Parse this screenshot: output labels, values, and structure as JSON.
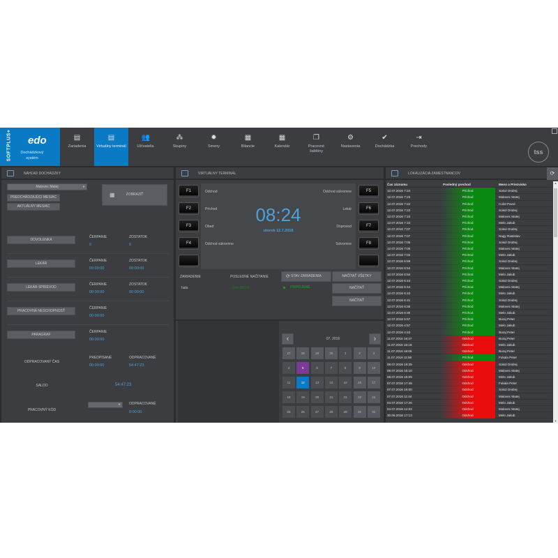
{
  "app": {
    "brand": "SOFTPLUS+",
    "logo": "edo",
    "title": "Dochádzkový systém"
  },
  "nav": [
    {
      "label": "Zariadenia",
      "icon": "device-icon"
    },
    {
      "label": "Virtuálny terminál",
      "icon": "terminal-icon",
      "active": true
    },
    {
      "label": "Užívatelia",
      "icon": "users-icon"
    },
    {
      "label": "Skupiny",
      "icon": "groups-icon"
    },
    {
      "label": "Smeny",
      "icon": "shifts-icon"
    },
    {
      "label": "Bilancie",
      "icon": "calculator-icon"
    },
    {
      "label": "Kalendár",
      "icon": "calendar-icon"
    },
    {
      "label": "Pracovné šablóny",
      "icon": "templates-icon"
    },
    {
      "label": "Nastavenia",
      "icon": "settings-icon"
    },
    {
      "label": "Dochádzka",
      "icon": "attendance-icon"
    },
    {
      "label": "Prechody",
      "icon": "door-icon"
    }
  ],
  "company_logo": "tss",
  "left": {
    "title": "NÁHĽAD DOCHÁDZKY",
    "employee": "Malovec Matej",
    "prev_month": "PREDCHÁDZAJÚCI MESIAC",
    "cur_month": "AKTUÁLNY MESIAC",
    "show": "ZOBRAZIŤ",
    "rows": [
      {
        "button": "DOVOLENKA",
        "l1": "ČERPANIE",
        "v1": "0",
        "l2": "ZOSTATOK",
        "v2": "0"
      },
      {
        "button": "LEKÁR",
        "l1": "ČERPANIE",
        "v1": "00:00:00",
        "l2": "ZOSTATOK",
        "v2": "00:00:00"
      },
      {
        "button": "LEKÁR SPRIEVOD",
        "l1": "ČERPANIE",
        "v1": "00:00:00",
        "l2": "ZOSTATOK",
        "v2": "00:00:00"
      },
      {
        "button": "PRACOVNÁ NESCHOPNOSŤ",
        "l1": "ČERPANIE",
        "v1": "00:00:00"
      },
      {
        "button": "PARAGRAF",
        "l1": "ČERPANIE",
        "v1": "00:00:00"
      }
    ],
    "worked": {
      "label": "ODPRACOVANÝ ČAS",
      "l1": "PREDPÍSANÉ",
      "v1": "00:00:00",
      "l2": "ODPRACOVANÉ",
      "v2": "54:47:23"
    },
    "saldo": {
      "label": "SALDO",
      "value": "54:47:23"
    },
    "code": {
      "label": "PRACOVNÝ KÓD",
      "l2": "ODPRACOVANÉ",
      "v2": "0:00:00"
    }
  },
  "center": {
    "title": "VIRTUÁLNY TERMINÁL",
    "time": "08:24",
    "date": "utorok 12.7.2016",
    "fkeys_left": [
      "F1",
      "F2",
      "F3",
      "F4",
      ""
    ],
    "fkeys_right": [
      "F5",
      "F6",
      "F7",
      "F8",
      ""
    ],
    "labels_left": [
      "Odchod",
      "Príchod",
      "Obed",
      "Odchod súkromne"
    ],
    "labels_right": [
      "Odchod súkromne",
      "Lekár",
      "Doprovod",
      "Súkromne"
    ],
    "col_device": "ZARIADENIE",
    "col_last": "POSLEDNÉ NAČÍTANIE",
    "status_btn": "STAV ZARIADENIA",
    "load_all": "NAČÍTAŤ VŠETKY",
    "load": "NAČÍTAŤ",
    "device": {
      "name": "hala",
      "last": "dnes 08:24",
      "status": "PRIPOJENÉ"
    },
    "calendar": {
      "month": "07. 2016",
      "selected": 12,
      "marked": 5,
      "days": [
        27,
        28,
        29,
        30,
        1,
        2,
        3,
        4,
        5,
        6,
        7,
        8,
        9,
        10,
        11,
        12,
        13,
        14,
        15,
        16,
        17,
        18,
        19,
        20,
        21,
        22,
        23,
        24,
        25,
        26,
        27,
        28,
        29,
        30,
        31
      ]
    }
  },
  "right": {
    "title": "LOKALIZÁCIA ZAMESTNANCOV",
    "cols": [
      "Čas záznamu",
      "Posledný prechod",
      "Meno a Priezvisko"
    ],
    "colors": {
      "in": "#0b8a12",
      "out": "#e80c0c"
    },
    "rows": [
      [
        "12.07.2016 7:24",
        "Príchod",
        "Sokol Ondrej"
      ],
      [
        "12.07.2016 7:23",
        "Príchod",
        "Malovec Matej"
      ],
      [
        "12.07.2016 7:22",
        "Príchod",
        "Colot Pavol"
      ],
      [
        "12.07.2016 7:22",
        "Príchod",
        "Sokol Ondrej"
      ],
      [
        "12.07.2016 7:10",
        "Príchod",
        "Malovec Matej"
      ],
      [
        "12.07.2016 7:10",
        "Príchod",
        "Melo Jakub"
      ],
      [
        "12.07.2016 7:07",
        "Príchod",
        "Sokol Ondrej"
      ],
      [
        "12.07.2016 7:07",
        "Príchod",
        "Nagy Rastislav"
      ],
      [
        "12.07.2016 7:05",
        "Príchod",
        "Sokol Ondrej"
      ],
      [
        "12.07.2016 7:05",
        "Príchod",
        "Malovec Matej"
      ],
      [
        "12.07.2016 7:02",
        "Príchod",
        "Melo Jakub"
      ],
      [
        "12.07.2016 6:58",
        "Príchod",
        "Sokol Ondrej"
      ],
      [
        "12.07.2016 6:54",
        "Príchod",
        "Malovec Matej"
      ],
      [
        "12.07.2016 6:54",
        "Príchod",
        "Melo Jakub"
      ],
      [
        "12.07.2016 6:44",
        "Príchod",
        "Sokol Ondrej"
      ],
      [
        "12.07.2016 6:44",
        "Príchod",
        "Malovec Matej"
      ],
      [
        "12.07.2016 6:43",
        "Príchod",
        "Melo Jakub"
      ],
      [
        "12.07.2016 6:41",
        "Príchod",
        "Sokol Ondrej"
      ],
      [
        "12.07.2016 6:35",
        "Príchod",
        "Malovec Matej"
      ],
      [
        "12.07.2016 6:30",
        "Príchod",
        "Melo Jakub"
      ],
      [
        "12.07.2016 5:57",
        "Príchod",
        "Buraj Peter"
      ],
      [
        "12.07.2016 4:57",
        "Príchod",
        "Melo Jakub"
      ],
      [
        "12.07.2016 4:43",
        "Príchod",
        "Buraj Peter"
      ],
      [
        "11.07.2016 16:47",
        "Odchod",
        "Buraj Peter"
      ],
      [
        "11.07.2016 16:18",
        "Odchod",
        "Melo Jakub"
      ],
      [
        "11.07.2016 16:06",
        "Odchod",
        "Buraj Peter"
      ],
      [
        "11.07.2016 11:58",
        "Príchod",
        "Fukala Peter"
      ],
      [
        "08.07.2016 16:35",
        "Odchod",
        "Sokol Ondrej"
      ],
      [
        "08.07.2016 15:10",
        "Odchod",
        "Malovec Matej"
      ],
      [
        "08.07.2016 15:09",
        "Odchod",
        "Melo Jakub"
      ],
      [
        "07.07.2016 17:45",
        "Odchod",
        "Fukala Peter"
      ],
      [
        "07.07.2016 16:00",
        "Odchod",
        "Sokol Ondrej"
      ],
      [
        "07.07.2016 11:44",
        "Odchod",
        "Malovec Matej"
      ],
      [
        "04.07.2016 17:26",
        "Odchod",
        "Melo Jakub"
      ],
      [
        "04.07.2016 12:02",
        "Odchod",
        "Malovec Matej"
      ],
      [
        "30.06.2016 17:13",
        "Odchod",
        "Melo Jakub"
      ]
    ]
  }
}
